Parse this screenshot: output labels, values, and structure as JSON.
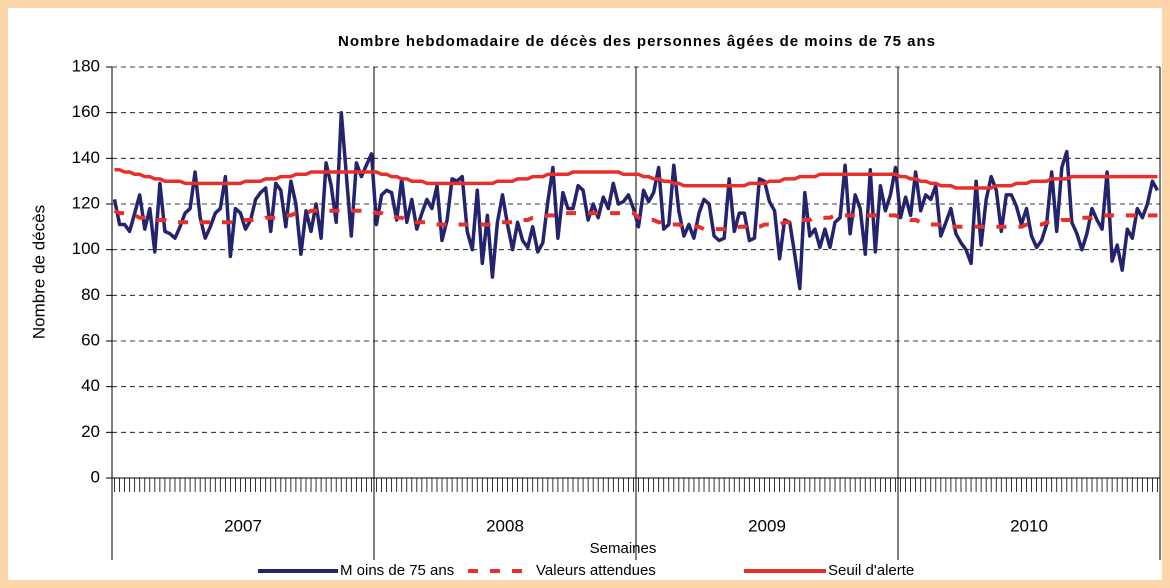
{
  "chart_data": {
    "type": "line",
    "title": "Nombre hebdomadaire de décès des personnes âgées de moins de 75 ans",
    "x_label": "Semaines",
    "y_label": "Nombre de décès",
    "groups": [
      "2007",
      "2008",
      "2009",
      "2010"
    ],
    "ylim": [
      0,
      180
    ],
    "yticks": [
      0,
      20,
      40,
      60,
      80,
      100,
      120,
      140,
      160,
      180
    ],
    "grid": true,
    "legend": "bottom",
    "series": [
      {
        "name": "M oins de 75 ans",
        "color": "#23236e",
        "line_style": "solid",
        "values": [
          [
            122,
            111,
            111,
            108,
            116,
            124,
            109,
            118,
            99,
            129,
            108,
            107,
            105,
            110,
            116,
            118,
            134,
            114,
            105,
            110,
            116,
            118,
            132,
            97,
            118,
            116,
            109,
            113,
            122,
            125,
            127,
            108,
            129,
            126,
            110,
            130,
            120,
            98,
            117,
            108,
            120,
            105,
            138,
            128,
            112,
            160,
            133,
            106,
            138,
            132,
            137,
            142
          ],
          [
            111,
            124,
            126,
            125,
            113,
            131,
            112,
            122,
            109,
            116,
            122,
            118,
            128,
            104,
            113,
            131,
            130,
            132,
            108,
            100,
            126,
            94,
            115,
            88,
            112,
            124,
            111,
            100,
            112,
            104,
            101,
            110,
            99,
            103,
            121,
            136,
            105,
            125,
            118,
            118,
            128,
            126,
            113,
            120,
            114,
            123,
            118,
            129,
            120,
            121,
            124,
            118
          ],
          [
            110,
            126,
            121,
            125,
            136,
            109,
            111,
            137,
            117,
            106,
            111,
            105,
            116,
            122,
            120,
            106,
            104,
            105,
            131,
            108,
            116,
            116,
            104,
            105,
            131,
            130,
            121,
            117,
            96,
            113,
            112,
            98,
            83,
            125,
            106,
            109,
            101,
            109,
            101,
            112,
            114,
            137,
            107,
            124,
            118,
            98,
            135,
            99,
            128,
            117,
            124,
            136
          ],
          [
            114,
            123,
            115,
            134,
            117,
            124,
            122,
            128,
            106,
            112,
            118,
            107,
            103,
            100,
            94,
            130,
            102,
            122,
            132,
            126,
            108,
            124,
            124,
            119,
            111,
            118,
            106,
            101,
            104,
            111,
            134,
            108,
            136,
            143,
            112,
            107,
            100,
            107,
            118,
            113,
            109,
            134,
            95,
            102,
            91,
            109,
            105,
            118,
            114,
            120,
            130,
            126
          ]
        ]
      },
      {
        "name": "Valeurs attendues",
        "color": "#e8302a",
        "line_style": "dashed",
        "values": [
          [
            117,
            116,
            116,
            115,
            115,
            114,
            114,
            113,
            113,
            113,
            113,
            112,
            112,
            112,
            112,
            112,
            112,
            112,
            112,
            112,
            112,
            112,
            112,
            112,
            112,
            113,
            113,
            113,
            113,
            113,
            114,
            114,
            114,
            115,
            115,
            115,
            116,
            116,
            116,
            117,
            117,
            117,
            117,
            117,
            117,
            117,
            117,
            117,
            117,
            117,
            117,
            117
          ],
          [
            116,
            116,
            115,
            115,
            114,
            114,
            113,
            113,
            112,
            112,
            112,
            111,
            111,
            111,
            111,
            111,
            111,
            111,
            111,
            111,
            111,
            111,
            111,
            111,
            112,
            112,
            112,
            112,
            113,
            113,
            113,
            114,
            114,
            114,
            115,
            115,
            115,
            116,
            116,
            116,
            116,
            116,
            116,
            116,
            116,
            116,
            116,
            116,
            116,
            116,
            116,
            116
          ],
          [
            114,
            114,
            113,
            113,
            112,
            112,
            111,
            111,
            111,
            110,
            110,
            110,
            110,
            109,
            109,
            109,
            109,
            109,
            109,
            109,
            110,
            110,
            110,
            110,
            110,
            111,
            111,
            111,
            111,
            112,
            112,
            112,
            113,
            113,
            113,
            114,
            114,
            114,
            114,
            115,
            115,
            115,
            115,
            115,
            115,
            115,
            115,
            115,
            115,
            115,
            115,
            115
          ],
          [
            114,
            114,
            113,
            113,
            112,
            112,
            111,
            111,
            111,
            110,
            110,
            110,
            110,
            110,
            110,
            110,
            110,
            110,
            110,
            110,
            110,
            110,
            110,
            110,
            110,
            111,
            111,
            111,
            111,
            112,
            112,
            112,
            113,
            113,
            113,
            114,
            114,
            114,
            114,
            115,
            115,
            115,
            115,
            115,
            115,
            115,
            115,
            115,
            115,
            115,
            115,
            115
          ]
        ]
      },
      {
        "name": "Seuil d'alerte",
        "color": "#e8302a",
        "line_style": "solid",
        "values": [
          [
            135,
            135,
            134,
            134,
            133,
            133,
            132,
            132,
            131,
            131,
            130,
            130,
            130,
            130,
            129,
            129,
            129,
            129,
            129,
            129,
            129,
            129,
            129,
            129,
            129,
            129,
            130,
            130,
            130,
            130,
            131,
            131,
            131,
            132,
            132,
            132,
            133,
            133,
            133,
            134,
            134,
            134,
            134,
            134,
            134,
            134,
            134,
            134,
            134,
            134,
            134,
            134
          ],
          [
            134,
            133,
            133,
            132,
            132,
            131,
            131,
            130,
            130,
            130,
            129,
            129,
            129,
            129,
            129,
            129,
            129,
            129,
            129,
            129,
            129,
            129,
            129,
            129,
            130,
            130,
            130,
            130,
            131,
            131,
            131,
            132,
            132,
            132,
            133,
            133,
            133,
            133,
            133,
            134,
            134,
            134,
            134,
            134,
            134,
            134,
            134,
            134,
            134,
            133,
            133,
            133
          ],
          [
            133,
            132,
            132,
            131,
            131,
            130,
            130,
            129,
            129,
            128,
            128,
            128,
            128,
            128,
            128,
            128,
            128,
            128,
            128,
            128,
            128,
            128,
            129,
            129,
            129,
            129,
            130,
            130,
            130,
            131,
            131,
            131,
            132,
            132,
            132,
            132,
            133,
            133,
            133,
            133,
            133,
            133,
            133,
            133,
            133,
            133,
            133,
            133,
            133,
            133,
            133,
            133
          ],
          [
            132,
            132,
            131,
            131,
            130,
            130,
            129,
            129,
            128,
            128,
            128,
            127,
            127,
            127,
            127,
            127,
            127,
            127,
            127,
            128,
            128,
            128,
            128,
            129,
            129,
            129,
            130,
            130,
            130,
            130,
            131,
            131,
            131,
            131,
            132,
            132,
            132,
            132,
            132,
            132,
            132,
            132,
            132,
            132,
            132,
            132,
            132,
            132,
            132,
            132,
            132,
            132
          ]
        ]
      }
    ]
  }
}
